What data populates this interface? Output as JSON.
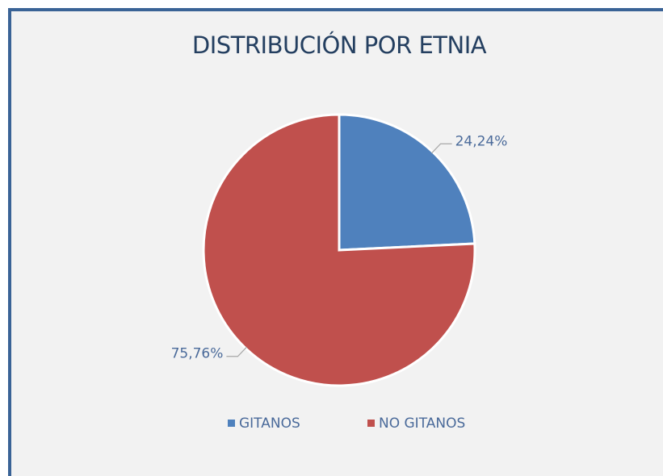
{
  "chart_data": {
    "type": "pie",
    "title": "DISTRIBUCIÓN POR ETNIA",
    "categories": [
      "GITANOS",
      "NO GITANOS"
    ],
    "values": [
      24.24,
      75.76
    ],
    "value_labels": [
      "24,24%",
      "75,76%"
    ],
    "colors": [
      "#4f81bd",
      "#c0504d"
    ],
    "legend": "bottom"
  }
}
